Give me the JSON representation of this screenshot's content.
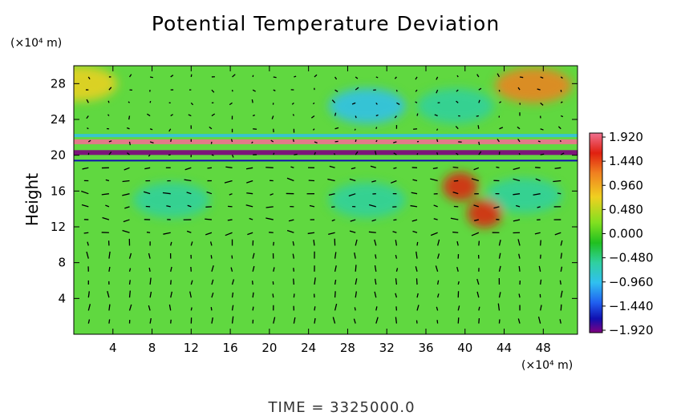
{
  "chart_data": {
    "type": "heatmap",
    "title": "Potential Temperature Deviation",
    "ylabel": "Height",
    "y_unit_label": "(×10⁴ m)",
    "x_unit_label": "(×10⁴ m)",
    "footer": "TIME = 3325000.0",
    "xlim": [
      0,
      51.5
    ],
    "ylim": [
      0,
      30
    ],
    "x_ticks": [
      "4",
      "8",
      "12",
      "16",
      "20",
      "24",
      "28",
      "32",
      "36",
      "40",
      "44",
      "48"
    ],
    "x_tick_values": [
      4,
      8,
      12,
      16,
      20,
      24,
      28,
      32,
      36,
      40,
      44,
      48
    ],
    "y_ticks": [
      "4",
      "8",
      "12",
      "16",
      "20",
      "24",
      "28"
    ],
    "y_tick_values": [
      4,
      8,
      12,
      16,
      20,
      24,
      28
    ],
    "colorbar": {
      "labels": [
        "1.920",
        "1.440",
        "0.960",
        "0.480",
        "0.000",
        "−0.480",
        "−0.960",
        "−1.440",
        "−1.920"
      ],
      "values": [
        1.92,
        1.44,
        0.96,
        0.48,
        0.0,
        -0.48,
        -0.96,
        -1.44,
        -1.92
      ],
      "colors": [
        "#f07090",
        "#e02010",
        "#f08020",
        "#f0d020",
        "#80e020",
        "#20c020",
        "#30d0a0",
        "#30c0f0",
        "#2060f0",
        "#1010b0",
        "#800080"
      ]
    },
    "field_features": [
      {
        "type": "warm",
        "x": 0.5,
        "y": 28,
        "value": 0.9
      },
      {
        "type": "warm",
        "x": 47,
        "y": 27.8,
        "value": 1.0
      },
      {
        "type": "cool",
        "x": 30,
        "y": 25.5,
        "value": -0.9
      },
      {
        "type": "cool",
        "x": 39,
        "y": 25.5,
        "value": -0.4
      },
      {
        "type": "cool",
        "x": 10,
        "y": 15,
        "value": -0.4
      },
      {
        "type": "cool",
        "x": 30,
        "y": 15,
        "value": -0.3
      },
      {
        "type": "cool",
        "x": 46,
        "y": 15.5,
        "value": -0.4
      },
      {
        "type": "warm",
        "x": 39.5,
        "y": 16.5,
        "value": 1.5
      },
      {
        "type": "warm",
        "x": 42,
        "y": 13.5,
        "value": 1.6
      },
      {
        "type": "tropopause_band",
        "y": 20.3,
        "value": -1.9
      },
      {
        "type": "tropopause_band",
        "y": 21.5,
        "value": 1.9
      }
    ]
  }
}
